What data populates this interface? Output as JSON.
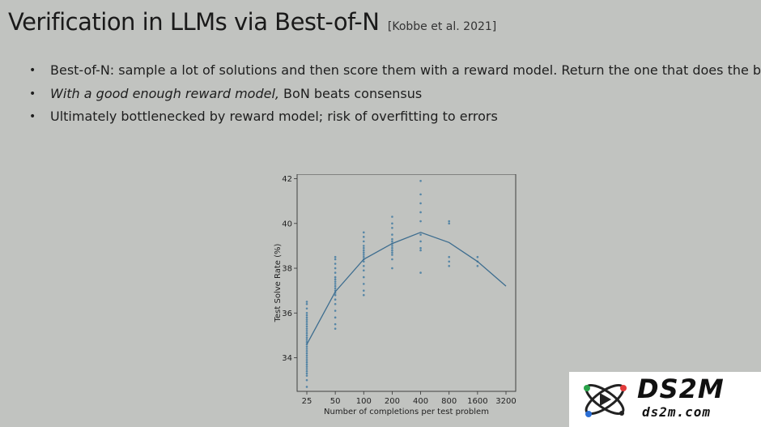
{
  "slide": {
    "title": "Verification in LLMs via Best-of-N",
    "citation": "[Kobbe et al. 2021]",
    "bullet_glyph": "•",
    "bullets": [
      {
        "plain": "Best-of-N: sample a lot of solutions and then score them with a reward model. Return the one that does the best"
      },
      {
        "italic": "With a good enough reward model,",
        "plain": " BoN beats consensus"
      },
      {
        "plain": "Ultimately bottlenecked by reward model; risk of overfitting to errors"
      }
    ]
  },
  "chart_data": {
    "type": "scatter",
    "xlabel": "Number of completions per test problem",
    "ylabel": "Test Solve Rate (%)",
    "categories": [
      "25",
      "50",
      "100",
      "200",
      "400",
      "800",
      "1600",
      "3200"
    ],
    "y_ticks": [
      "34",
      "36",
      "38",
      "40",
      "42"
    ],
    "ylim": [
      32.5,
      42.2
    ],
    "line_color": "#3d6d8f",
    "point_color": "#4a7fa3",
    "mean_line": [
      34.6,
      36.95,
      38.4,
      39.1,
      39.6,
      39.15,
      38.3,
      37.2
    ],
    "samples": [
      [
        33.0,
        33.2,
        33.3,
        33.4,
        33.5,
        33.6,
        33.7,
        33.8,
        33.9,
        34.0,
        34.1,
        34.2,
        34.3,
        34.4,
        34.5,
        34.6,
        34.7,
        34.8,
        34.9,
        35.0,
        35.1,
        35.2,
        35.3,
        35.4,
        35.5,
        35.6,
        35.7,
        35.8,
        35.9,
        36.0,
        36.2,
        36.4,
        36.5,
        32.7
      ],
      [
        35.3,
        35.5,
        35.8,
        36.1,
        36.4,
        36.6,
        36.8,
        36.9,
        37.0,
        37.1,
        37.2,
        37.3,
        37.4,
        37.5,
        37.6,
        37.8,
        38.0,
        38.2,
        38.4,
        38.5
      ],
      [
        36.8,
        37.0,
        37.3,
        37.6,
        37.9,
        38.1,
        38.3,
        38.4,
        38.5,
        38.6,
        38.7,
        38.8,
        38.9,
        39.0,
        39.2,
        39.4,
        39.6
      ],
      [
        38.0,
        38.4,
        38.6,
        38.7,
        38.8,
        38.9,
        39.0,
        39.1,
        39.2,
        39.3,
        39.5,
        39.8,
        40.0,
        40.3
      ],
      [
        37.8,
        38.8,
        38.9,
        39.2,
        39.5,
        40.1,
        40.5,
        40.9,
        41.3,
        41.9
      ],
      [
        38.1,
        38.3,
        38.5,
        40.0,
        40.1
      ],
      [
        38.1,
        38.3,
        38.5
      ],
      []
    ]
  },
  "logo": {
    "wordmark": "DS2M",
    "domain": "ds2m.com"
  }
}
